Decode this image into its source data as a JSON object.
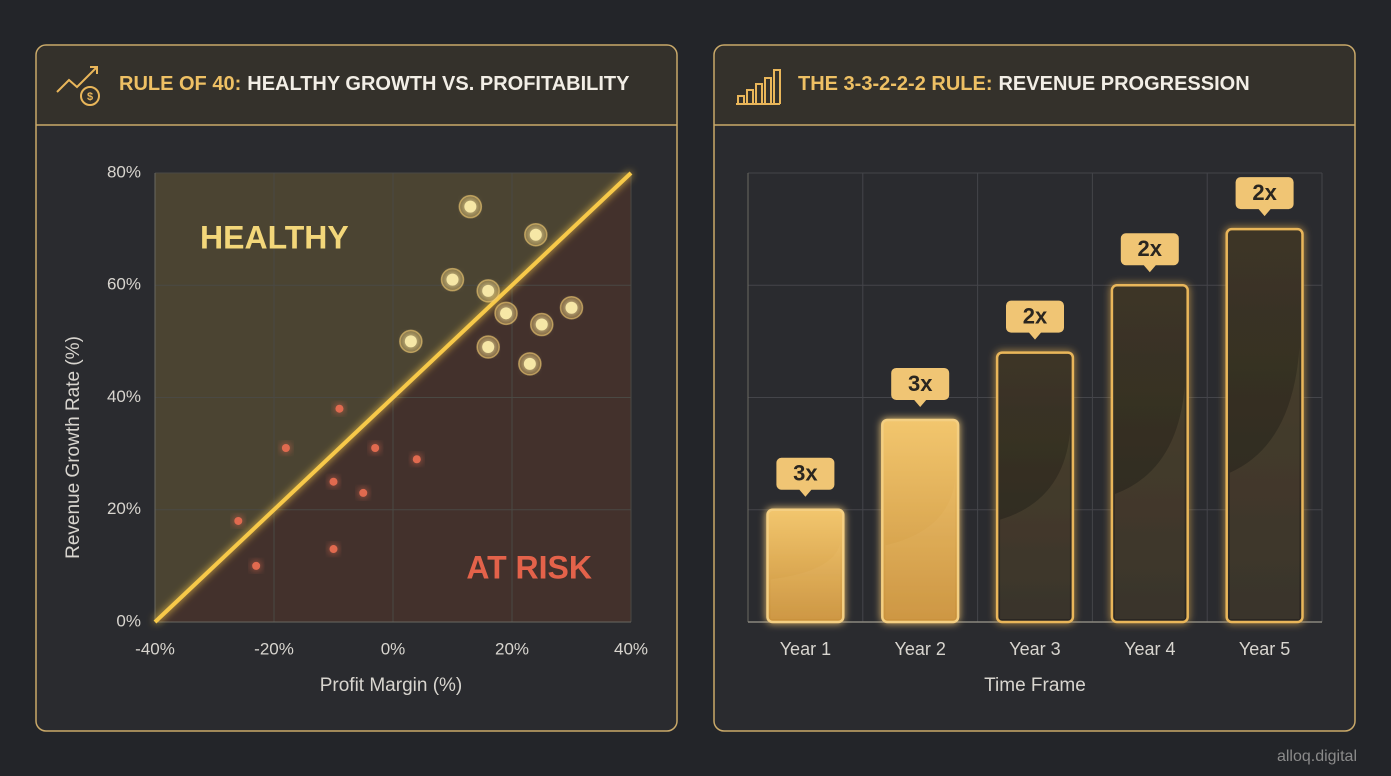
{
  "charts": [
    {
      "type": "scatter",
      "title": [
        "RULE OF 40:",
        "HEALTHY GROWTH VS. PROFITABILITY"
      ],
      "x_label": "Profit Margin (%)",
      "y_label": "Revenue Growth Rate (%)",
      "annotations": [
        "HEALTHY",
        "AT RISK"
      ],
      "xlim": [
        -40,
        40
      ],
      "xticks": [
        {
          "value": -40,
          "label": "-40%"
        },
        {
          "value": -20,
          "label": "-20%"
        },
        {
          "value": 0,
          "label": "0%"
        },
        {
          "value": 20,
          "label": "20%"
        },
        {
          "value": 40,
          "label": "40%"
        }
      ],
      "ylim": [
        0,
        80
      ],
      "yticks": [
        {
          "value": 0,
          "label": "0%"
        },
        {
          "value": 20,
          "label": "20%"
        },
        {
          "value": 40,
          "label": "40%"
        },
        {
          "value": 60,
          "label": "60%"
        },
        {
          "value": 80,
          "label": "80%"
        }
      ],
      "grid": true,
      "reference_line": {
        "x": [
          -40,
          40
        ],
        "y": [
          0,
          80
        ],
        "color": "#f7c948"
      },
      "series": [
        {
          "color": "#f6e7a6",
          "x": [
            13,
            24,
            10,
            16,
            19,
            30,
            25,
            3,
            16,
            23
          ],
          "values": [
            74,
            69,
            61,
            59,
            55,
            56,
            53,
            50,
            49,
            46
          ]
        },
        {
          "color": "#e06a4f",
          "x": [
            -9,
            -18,
            -3,
            4,
            -10,
            -5,
            -26,
            -10,
            -23
          ],
          "values": [
            38,
            31,
            31,
            29,
            25,
            23,
            18,
            13,
            10
          ]
        }
      ]
    },
    {
      "type": "bar",
      "title": [
        "THE 3-3-2-2-2 RULE:",
        "REVENUE PROGRESSION"
      ],
      "x_label": "Time Frame",
      "categories": [
        "Year 1",
        "Year 2",
        "Year 3",
        "Year 4",
        "Year 5"
      ],
      "values": [
        1.0,
        1.8,
        2.4,
        3.0,
        3.5
      ],
      "annotations": [
        "3x",
        "3x",
        "2x",
        "2x",
        "2x"
      ],
      "styles": [
        "filled",
        "filled",
        "outline",
        "outline",
        "outline"
      ],
      "color": "#e9b65a",
      "ylim": [
        0,
        4
      ],
      "grid_lines": [
        1,
        2,
        3,
        4
      ]
    }
  ],
  "footer": "alloq.digital"
}
